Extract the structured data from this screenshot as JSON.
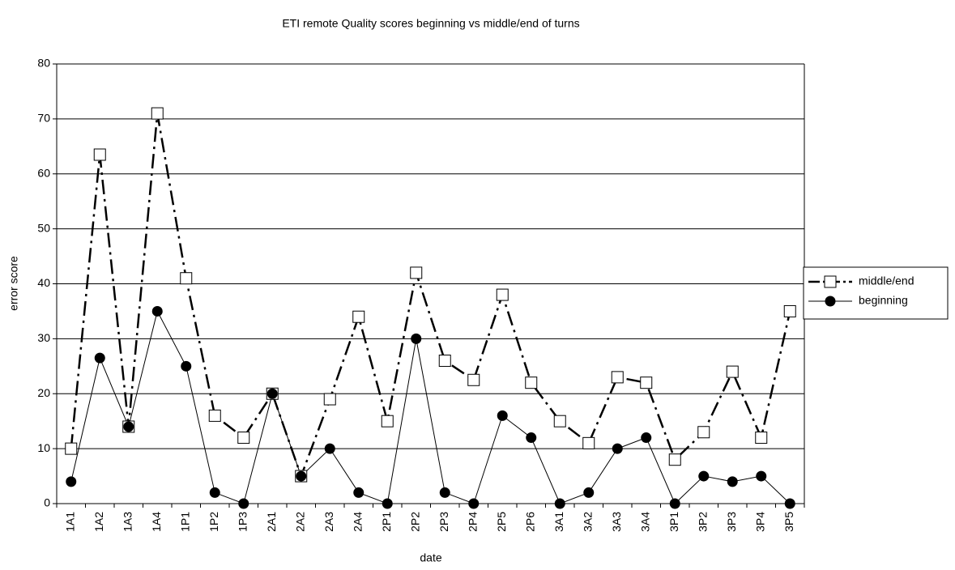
{
  "chart_data": {
    "type": "line",
    "title": "ETI remote Quality scores beginning vs middle/end of turns",
    "x_label": "date",
    "y_label": "error score",
    "categories": [
      "1A1",
      "1A2",
      "1A3",
      "1A4",
      "1P1",
      "1P2",
      "1P3",
      "2A1",
      "2A2",
      "2A3",
      "2A4",
      "2P1",
      "2P2",
      "2P3",
      "2P4",
      "2P5",
      "2P6",
      "3A1",
      "3A2",
      "3A3",
      "3A4",
      "3P1",
      "3P2",
      "3P3",
      "3P4",
      "3P5"
    ],
    "series": [
      {
        "name": "middle/end",
        "color": "#000000",
        "marker": "square",
        "line_style": "dashdot",
        "values": [
          10,
          63.5,
          14,
          71,
          41,
          16,
          12,
          20,
          5,
          19,
          34,
          15,
          42,
          26,
          22.5,
          38,
          22,
          15,
          11,
          23,
          22,
          8,
          13,
          24,
          12,
          35
        ]
      },
      {
        "name": "beginning",
        "color": "#000000",
        "marker": "circle",
        "line_style": "solid",
        "values": [
          4,
          26.5,
          14,
          35,
          25,
          2,
          0,
          20,
          5,
          10,
          2,
          0,
          30,
          2,
          0,
          16,
          12,
          0,
          2,
          10,
          12,
          0,
          5,
          4,
          5,
          0
        ]
      }
    ],
    "ylim": [
      0,
      80
    ],
    "yticks": [
      0,
      10,
      20,
      30,
      40,
      50,
      60,
      70,
      80
    ],
    "grid": true,
    "legend": "right"
  }
}
